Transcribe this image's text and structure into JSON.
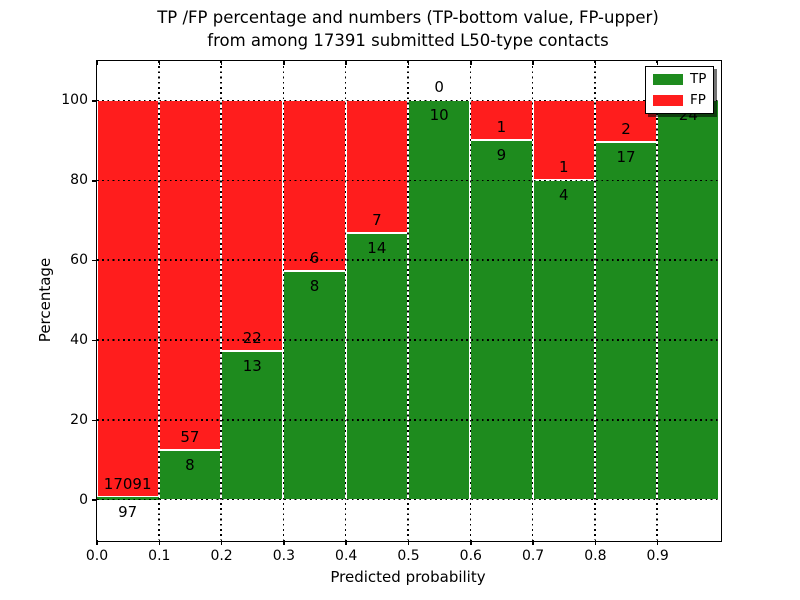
{
  "title": {
    "line1": "TP /FP percentage and numbers (TP-bottom value, FP-upper)",
    "line2": "from among 17391 submitted L50-type contacts"
  },
  "axes": {
    "xlabel": "Predicted probability",
    "ylabel": "Percentage",
    "xlim": [
      0,
      1
    ],
    "ylim": [
      -10,
      110
    ],
    "xtick_labels": [
      "0.0",
      "0.1",
      "0.2",
      "0.3",
      "0.4",
      "0.5",
      "0.6",
      "0.7",
      "0.8",
      "0.9"
    ],
    "ytick_labels": [
      "0",
      "20",
      "40",
      "60",
      "80",
      "100"
    ],
    "grid": true
  },
  "legend": {
    "position": "upper right",
    "items": [
      {
        "label": "TP",
        "color": "#1e8b1e"
      },
      {
        "label": "FP",
        "color": "#ff1d1d"
      }
    ]
  },
  "colors": {
    "tp": "#1e8b1e",
    "fp": "#ff1d1d",
    "grid": "#000000",
    "bar_edge": "#ffffff",
    "background": "#ffffff",
    "text": "#000000"
  },
  "chart_data": {
    "type": "bar",
    "stacked": true,
    "orientation": "vertical",
    "bin_width": 0.1,
    "series_order": [
      "TP bottom",
      "FP top"
    ],
    "total_contacts": 17391,
    "bins": [
      {
        "range": [
          0.0,
          0.1
        ],
        "tp": 97,
        "fp": 17091,
        "tp_pct": 0.56
      },
      {
        "range": [
          0.1,
          0.2
        ],
        "tp": 8,
        "fp": 57,
        "tp_pct": 12.31
      },
      {
        "range": [
          0.2,
          0.3
        ],
        "tp": 13,
        "fp": 22,
        "tp_pct": 37.14
      },
      {
        "range": [
          0.3,
          0.4
        ],
        "tp": 8,
        "fp": 6,
        "tp_pct": 57.14
      },
      {
        "range": [
          0.4,
          0.5
        ],
        "tp": 14,
        "fp": 7,
        "tp_pct": 66.67
      },
      {
        "range": [
          0.5,
          0.6
        ],
        "tp": 10,
        "fp": 0,
        "tp_pct": 100
      },
      {
        "range": [
          0.6,
          0.7
        ],
        "tp": 9,
        "fp": 1,
        "tp_pct": 90
      },
      {
        "range": [
          0.7,
          0.8
        ],
        "tp": 4,
        "fp": 1,
        "tp_pct": 80
      },
      {
        "range": [
          0.8,
          0.9
        ],
        "tp": 17,
        "fp": 2,
        "tp_pct": 89.47
      },
      {
        "range": [
          0.9,
          1.0
        ],
        "tp": 24,
        "fp": 0,
        "tp_pct": 100,
        "fp_label_hidden": true
      }
    ]
  }
}
